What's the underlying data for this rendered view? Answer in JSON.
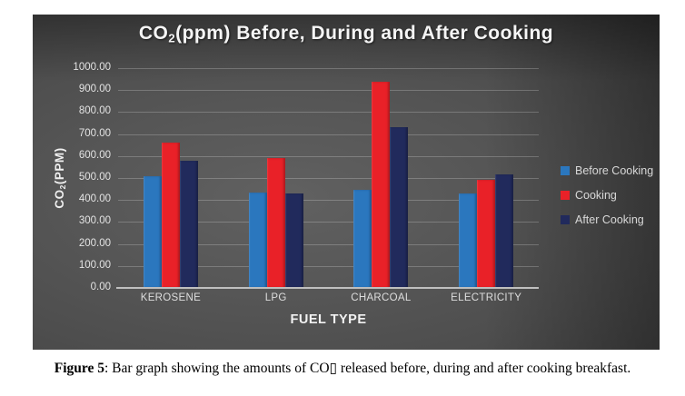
{
  "figure": {
    "title": {
      "pre": "CO",
      "sub": "2",
      "post": "(ppm) Before, During and After Cooking"
    },
    "ylabel": {
      "pre": "CO",
      "sub": "2",
      "post": "(PPM)"
    },
    "yticks": [
      "1000.00",
      "900.00",
      "800.00",
      "700.00",
      "600.00",
      "500.00",
      "400.00",
      "300.00",
      "200.00",
      "100.00",
      "0.00"
    ]
  },
  "chart_data": {
    "type": "bar",
    "title": "CO2(ppm) Before, During and After Cooking",
    "xlabel": "FUEL TYPE",
    "ylabel": "CO2(PPM)",
    "categories": [
      "KEROSENE",
      "LPG",
      "CHARCOAL",
      "ELECTRICITY"
    ],
    "series": [
      {
        "name": "Before Cooking",
        "color": "#2B77BE",
        "values": [
          510,
          435,
          448,
          430
        ]
      },
      {
        "name": "Cooking",
        "color": "#E92128",
        "values": [
          660,
          593,
          940,
          490
        ]
      },
      {
        "name": "After Cooking",
        "color": "#212A5C",
        "values": [
          577,
          428,
          730,
          517
        ]
      }
    ],
    "ylim": [
      0,
      1000
    ],
    "ytick_step": 100,
    "grid": "horizontal",
    "legend_position": "right",
    "plot_background": "dark-gray-gradient"
  },
  "caption": {
    "label": "Figure 5",
    "text": ": Bar graph showing the amounts of CO▯ released before, during and after cooking breakfast."
  }
}
